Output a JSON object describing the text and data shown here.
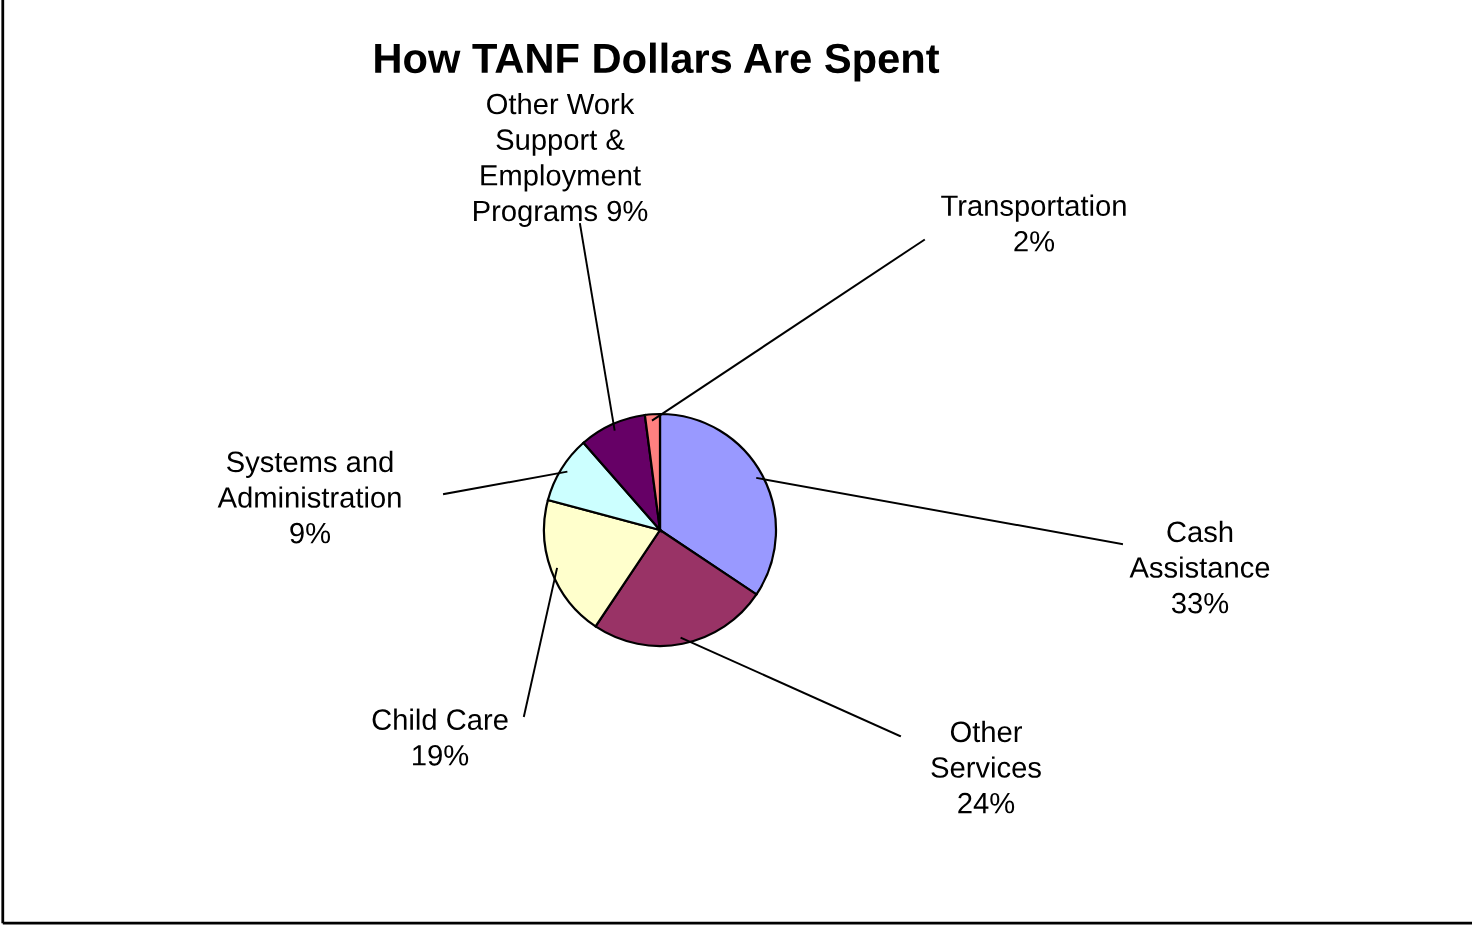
{
  "chart_data": {
    "type": "pie",
    "title": "How TANF Dollars Are Spent",
    "categories": [
      "Cash Assistance",
      "Other Services",
      "Child Care",
      "Systems and Administration",
      "Other Work Support & Employment Programs",
      "Transportation"
    ],
    "values": [
      33,
      24,
      19,
      9,
      9,
      2
    ],
    "value_labels": [
      "33%",
      "24%",
      "19%",
      "9%",
      "9%",
      "2%"
    ],
    "colors": [
      "#9999ff",
      "#993366",
      "#ffffcc",
      "#ccffff",
      "#660066",
      "#ff8080"
    ]
  }
}
